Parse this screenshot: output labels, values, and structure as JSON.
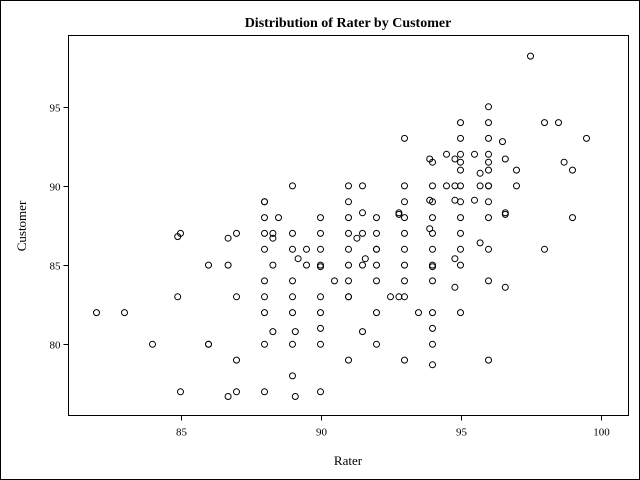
{
  "chart_data": {
    "type": "scatter",
    "title": "Distribution of Rater by Customer",
    "xlabel": "Rater",
    "ylabel": "Customer",
    "xlim": [
      81,
      101
    ],
    "ylim": [
      75.5,
      99.5
    ],
    "xticks": [
      85,
      90,
      95,
      100
    ],
    "yticks": [
      80,
      85,
      90,
      95
    ],
    "grid": false,
    "marker": "open-circle",
    "marker_color": "#000000",
    "points": [
      [
        82,
        82
      ],
      [
        83,
        82
      ],
      [
        84,
        80
      ],
      [
        85,
        77
      ],
      [
        85,
        87
      ],
      [
        84.9,
        86.8
      ],
      [
        84.9,
        83
      ],
      [
        86,
        85
      ],
      [
        86,
        80
      ],
      [
        86,
        80
      ],
      [
        86.7,
        85
      ],
      [
        86.7,
        86.7
      ],
      [
        86.7,
        76.7
      ],
      [
        87,
        87
      ],
      [
        87,
        83
      ],
      [
        87,
        79
      ],
      [
        87,
        77
      ],
      [
        88,
        89
      ],
      [
        88,
        88
      ],
      [
        88,
        87
      ],
      [
        88,
        86
      ],
      [
        88,
        84
      ],
      [
        88,
        83
      ],
      [
        88,
        82
      ],
      [
        88,
        80
      ],
      [
        88,
        77
      ],
      [
        88,
        89
      ],
      [
        88.3,
        87
      ],
      [
        88.3,
        86.7
      ],
      [
        88.3,
        85
      ],
      [
        88.3,
        80.8
      ],
      [
        88.5,
        88
      ],
      [
        89,
        90
      ],
      [
        89,
        87
      ],
      [
        89,
        86
      ],
      [
        89,
        84
      ],
      [
        89,
        83
      ],
      [
        89,
        82
      ],
      [
        89,
        80
      ],
      [
        89,
        78
      ],
      [
        89.2,
        85.4
      ],
      [
        89.1,
        80.8
      ],
      [
        89.1,
        76.7
      ],
      [
        89.5,
        86
      ],
      [
        89.5,
        85
      ],
      [
        90,
        88
      ],
      [
        90,
        87
      ],
      [
        90,
        86
      ],
      [
        90,
        85
      ],
      [
        90,
        84.9
      ],
      [
        90,
        83
      ],
      [
        90,
        82
      ],
      [
        90,
        81
      ],
      [
        90,
        80
      ],
      [
        90,
        77
      ],
      [
        90.5,
        84
      ],
      [
        91,
        90
      ],
      [
        91,
        89
      ],
      [
        91,
        88
      ],
      [
        91,
        87
      ],
      [
        91,
        86
      ],
      [
        91,
        85
      ],
      [
        91,
        84
      ],
      [
        91,
        83
      ],
      [
        91,
        79
      ],
      [
        91,
        83
      ],
      [
        91.3,
        86.7
      ],
      [
        91.5,
        90
      ],
      [
        91.5,
        88.3
      ],
      [
        91.5,
        87
      ],
      [
        91.5,
        85
      ],
      [
        91.5,
        80.8
      ],
      [
        91.6,
        85.4
      ],
      [
        92,
        88
      ],
      [
        92,
        87
      ],
      [
        92,
        86
      ],
      [
        92,
        85
      ],
      [
        92,
        84
      ],
      [
        92,
        82
      ],
      [
        92,
        80
      ],
      [
        92,
        86
      ],
      [
        92.5,
        83
      ],
      [
        92.8,
        88.3
      ],
      [
        92.8,
        88.2
      ],
      [
        92.8,
        83
      ],
      [
        93,
        93
      ],
      [
        93,
        90
      ],
      [
        93,
        89
      ],
      [
        93,
        88
      ],
      [
        93,
        87
      ],
      [
        93,
        86
      ],
      [
        93,
        85
      ],
      [
        93,
        84
      ],
      [
        93,
        83
      ],
      [
        93,
        79
      ],
      [
        93.5,
        82
      ],
      [
        93.9,
        91.7
      ],
      [
        94,
        91.5
      ],
      [
        93.9,
        89.1
      ],
      [
        94,
        90
      ],
      [
        94,
        89
      ],
      [
        94,
        88
      ],
      [
        94,
        87
      ],
      [
        94,
        86
      ],
      [
        94,
        85
      ],
      [
        94,
        84
      ],
      [
        94,
        82
      ],
      [
        94,
        81
      ],
      [
        94,
        80
      ],
      [
        94,
        78.7
      ],
      [
        93.9,
        87.3
      ],
      [
        94,
        84.9
      ],
      [
        94.5,
        92
      ],
      [
        94.5,
        90
      ],
      [
        94.8,
        91.7
      ],
      [
        94.8,
        89.1
      ],
      [
        94.8,
        90
      ],
      [
        94.8,
        85.4
      ],
      [
        94.8,
        83.6
      ],
      [
        95,
        94
      ],
      [
        95,
        93
      ],
      [
        95,
        92
      ],
      [
        95,
        91.5
      ],
      [
        95,
        91
      ],
      [
        95,
        90
      ],
      [
        95,
        89
      ],
      [
        95,
        88
      ],
      [
        95,
        87
      ],
      [
        95,
        86
      ],
      [
        95,
        85
      ],
      [
        95,
        82
      ],
      [
        95.5,
        92
      ],
      [
        95.5,
        89.1
      ],
      [
        95.7,
        90.8
      ],
      [
        95.7,
        90
      ],
      [
        95.7,
        86.4
      ],
      [
        96,
        95
      ],
      [
        96,
        94
      ],
      [
        96,
        93
      ],
      [
        96,
        92
      ],
      [
        96,
        91.5
      ],
      [
        96,
        91
      ],
      [
        96,
        90
      ],
      [
        96,
        89
      ],
      [
        96,
        88
      ],
      [
        96,
        86
      ],
      [
        96,
        84
      ],
      [
        96,
        79
      ],
      [
        96,
        90
      ],
      [
        96.5,
        92.8
      ],
      [
        96.6,
        91.7
      ],
      [
        96.6,
        88.2
      ],
      [
        96.6,
        88.3
      ],
      [
        96.6,
        83.6
      ],
      [
        97,
        91
      ],
      [
        97,
        90
      ],
      [
        97.5,
        98.2
      ],
      [
        98,
        94
      ],
      [
        98,
        86
      ],
      [
        98.5,
        94
      ],
      [
        98.7,
        91.5
      ],
      [
        99,
        91
      ],
      [
        99,
        88
      ],
      [
        99.5,
        93
      ]
    ]
  }
}
